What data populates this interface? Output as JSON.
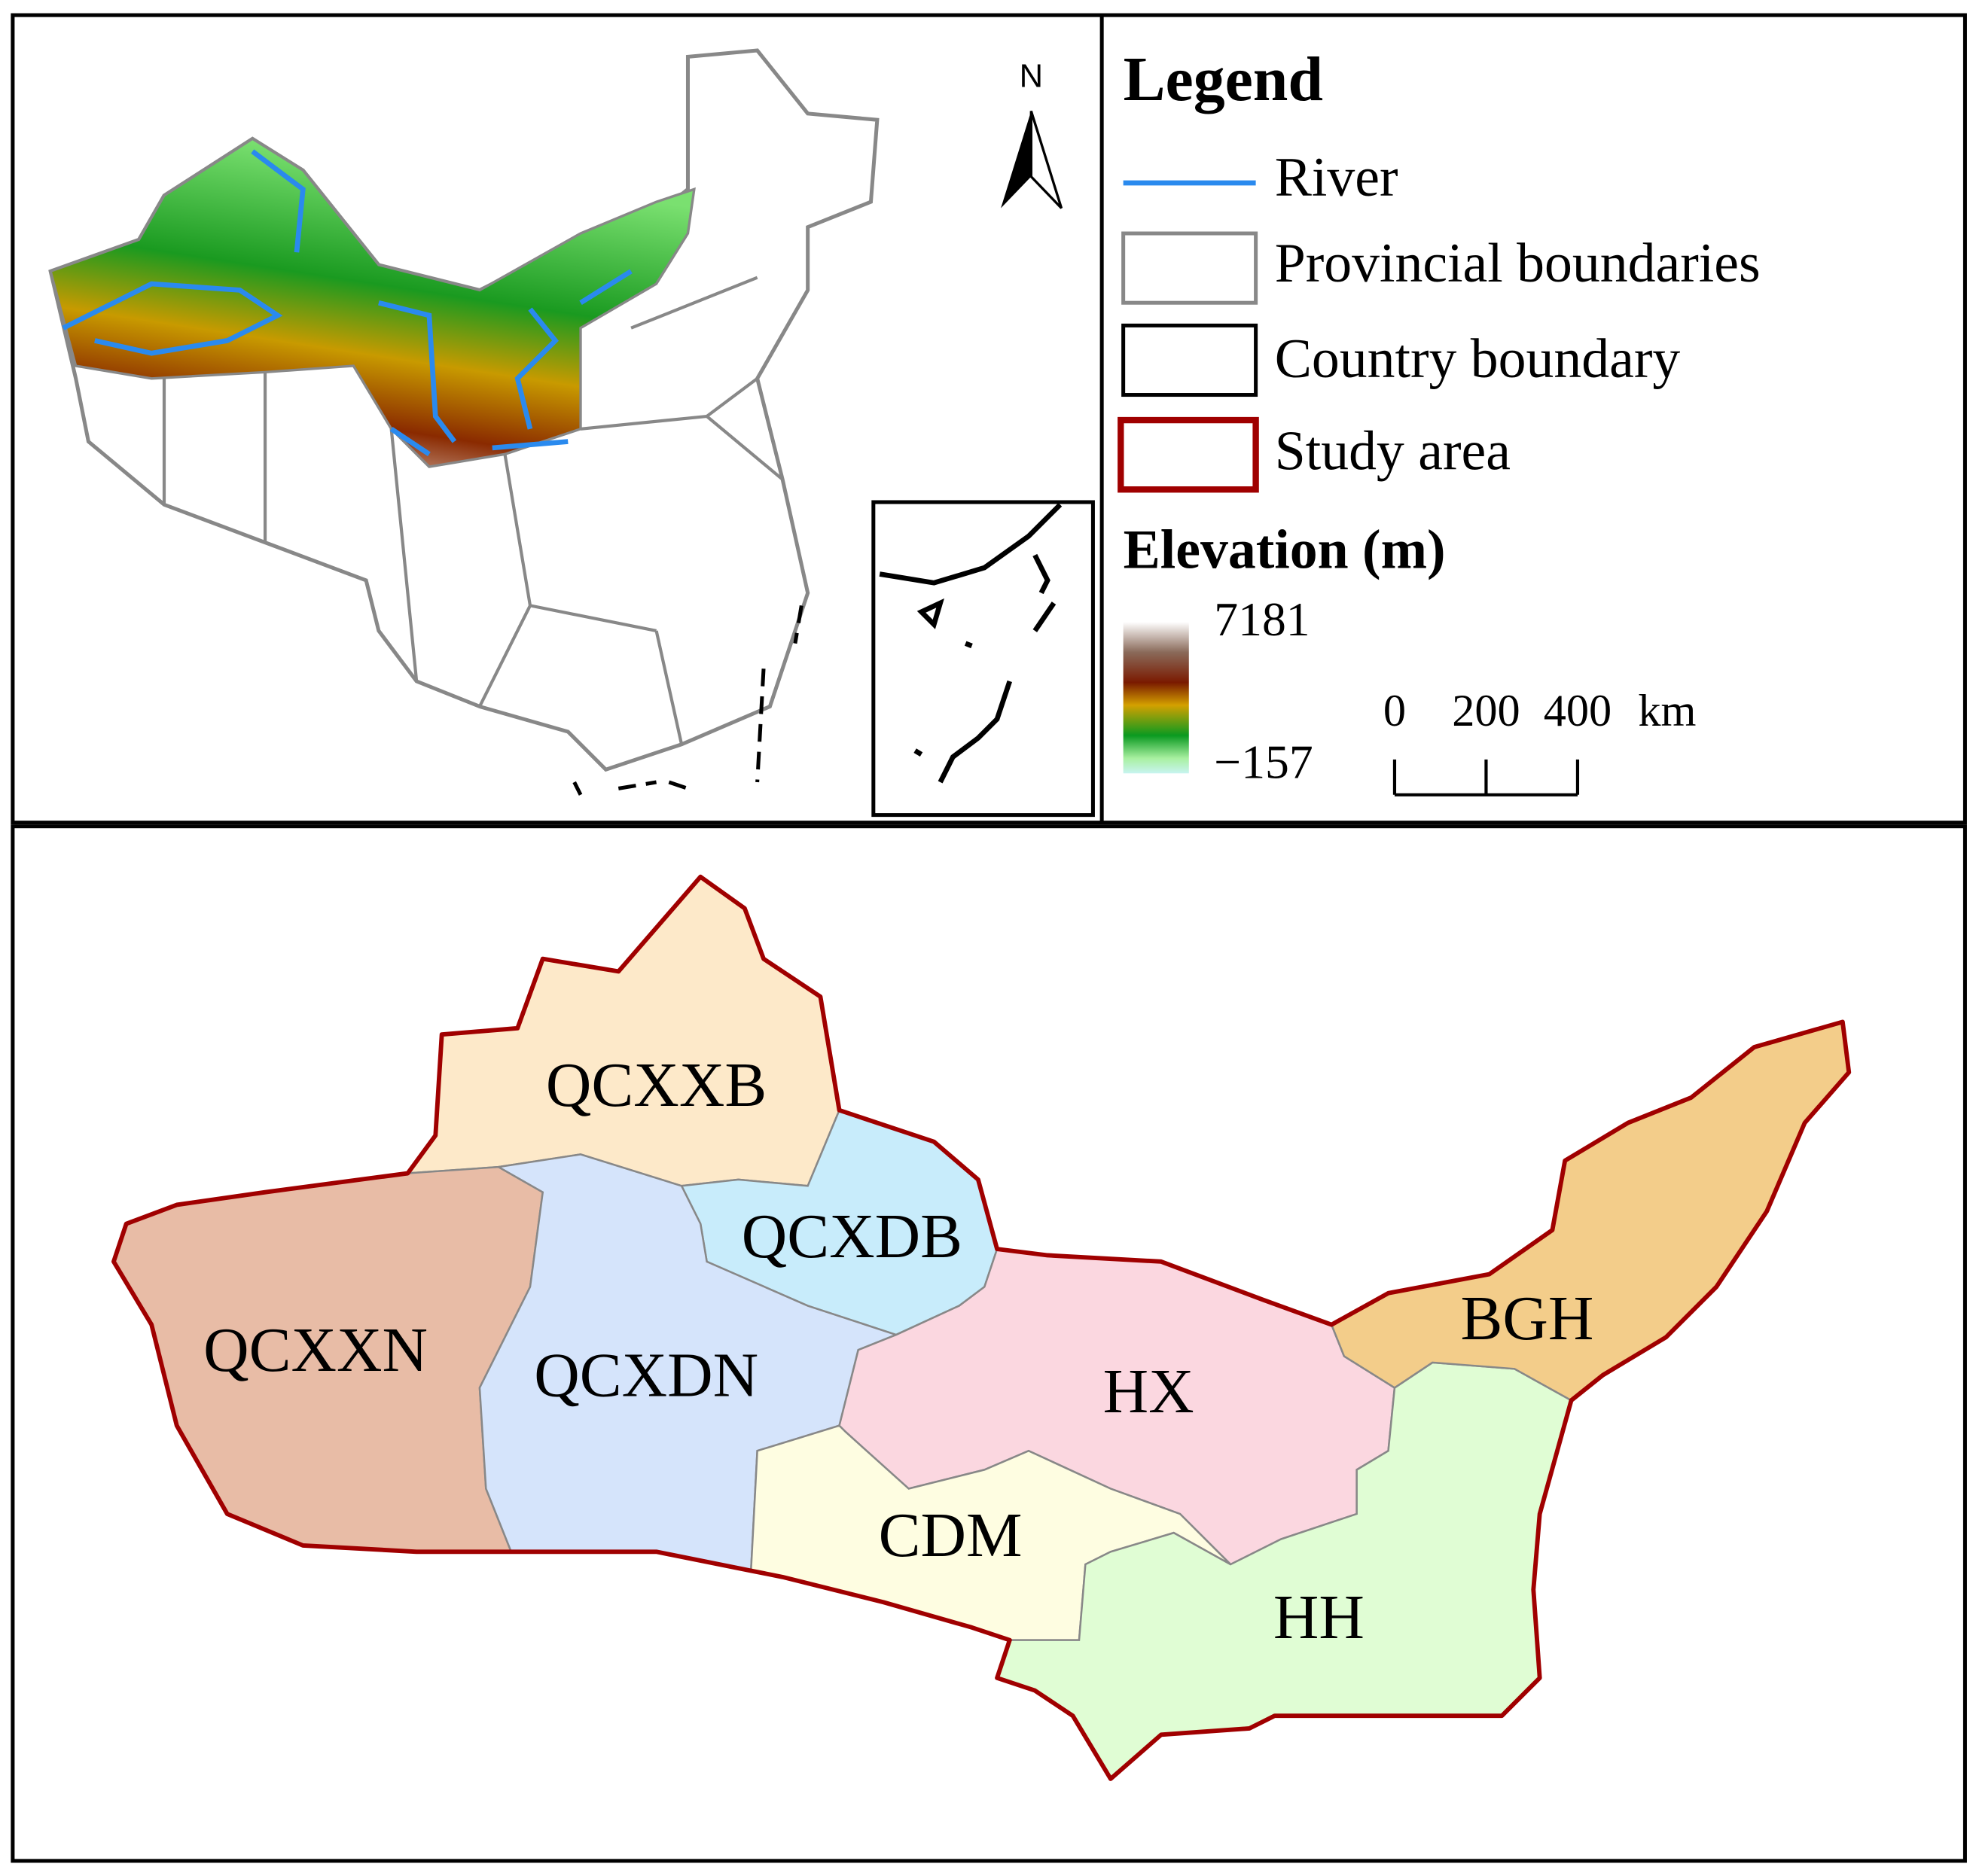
{
  "north": "N",
  "legend": {
    "title": "Legend",
    "items": [
      "River",
      "Provincial boundaries",
      "Country boundary",
      "Study area"
    ],
    "elevation_title": "Elevation (m)",
    "elevation_max": "7181",
    "elevation_min": "−157"
  },
  "scale_bar": {
    "ticks": [
      0,
      200,
      400
    ],
    "unit": "km"
  },
  "regions": [
    "QCXXB",
    "QCXDB",
    "QCXXN",
    "QCXDN",
    "HX",
    "BGH",
    "CDM",
    "HH"
  ]
}
